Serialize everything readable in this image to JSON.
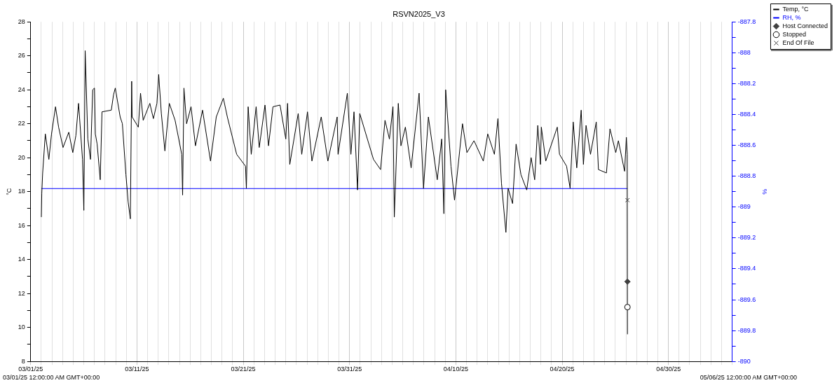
{
  "chart_data": {
    "type": "line",
    "title": "RSVN2025_V3",
    "ylabel": "°C",
    "y2label": "%",
    "xlim": [
      "2025-03-01",
      "2025-05-06"
    ],
    "xticks": [
      {
        "value": "2025-03-01",
        "label": "03/01/25"
      },
      {
        "value": "2025-03-02",
        "label": null
      },
      {
        "value": "2025-03-03",
        "label": null
      },
      {
        "value": "2025-03-04",
        "label": null
      },
      {
        "value": "2025-03-05",
        "label": null
      },
      {
        "value": "2025-03-06",
        "label": null
      },
      {
        "value": "2025-03-07",
        "label": null
      },
      {
        "value": "2025-03-08",
        "label": null
      },
      {
        "value": "2025-03-09",
        "label": null
      },
      {
        "value": "2025-03-10",
        "label": null
      },
      {
        "value": "2025-03-11",
        "label": "03/11/25"
      },
      {
        "value": "2025-03-12",
        "label": null
      },
      {
        "value": "2025-03-13",
        "label": null
      },
      {
        "value": "2025-03-14",
        "label": null
      },
      {
        "value": "2025-03-15",
        "label": null
      },
      {
        "value": "2025-03-16",
        "label": null
      },
      {
        "value": "2025-03-17",
        "label": null
      },
      {
        "value": "2025-03-18",
        "label": null
      },
      {
        "value": "2025-03-19",
        "label": null
      },
      {
        "value": "2025-03-20",
        "label": null
      },
      {
        "value": "2025-03-21",
        "label": "03/21/25"
      },
      {
        "value": "2025-03-22",
        "label": null
      },
      {
        "value": "2025-03-23",
        "label": null
      },
      {
        "value": "2025-03-24",
        "label": null
      },
      {
        "value": "2025-03-25",
        "label": null
      },
      {
        "value": "2025-03-26",
        "label": null
      },
      {
        "value": "2025-03-27",
        "label": null
      },
      {
        "value": "2025-03-28",
        "label": null
      },
      {
        "value": "2025-03-29",
        "label": null
      },
      {
        "value": "2025-03-30",
        "label": null
      },
      {
        "value": "2025-03-31",
        "label": "03/31/25"
      },
      {
        "value": "2025-04-01",
        "label": null
      },
      {
        "value": "2025-04-02",
        "label": null
      },
      {
        "value": "2025-04-03",
        "label": null
      },
      {
        "value": "2025-04-04",
        "label": null
      },
      {
        "value": "2025-04-05",
        "label": null
      },
      {
        "value": "2025-04-06",
        "label": null
      },
      {
        "value": "2025-04-07",
        "label": null
      },
      {
        "value": "2025-04-08",
        "label": null
      },
      {
        "value": "2025-04-09",
        "label": null
      },
      {
        "value": "2025-04-10",
        "label": "04/10/25"
      },
      {
        "value": "2025-04-11",
        "label": null
      },
      {
        "value": "2025-04-12",
        "label": null
      },
      {
        "value": "2025-04-13",
        "label": null
      },
      {
        "value": "2025-04-14",
        "label": null
      },
      {
        "value": "2025-04-15",
        "label": null
      },
      {
        "value": "2025-04-16",
        "label": null
      },
      {
        "value": "2025-04-17",
        "label": null
      },
      {
        "value": "2025-04-18",
        "label": null
      },
      {
        "value": "2025-04-19",
        "label": null
      },
      {
        "value": "2025-04-20",
        "label": "04/20/25"
      },
      {
        "value": "2025-04-21",
        "label": null
      },
      {
        "value": "2025-04-22",
        "label": null
      },
      {
        "value": "2025-04-23",
        "label": null
      },
      {
        "value": "2025-04-24",
        "label": null
      },
      {
        "value": "2025-04-25",
        "label": null
      },
      {
        "value": "2025-04-26",
        "label": null
      },
      {
        "value": "2025-04-27",
        "label": null
      },
      {
        "value": "2025-04-28",
        "label": null
      },
      {
        "value": "2025-04-29",
        "label": null
      },
      {
        "value": "2025-04-30",
        "label": "04/30/25"
      },
      {
        "value": "2025-05-01",
        "label": null
      },
      {
        "value": "2025-05-02",
        "label": null
      },
      {
        "value": "2025-05-03",
        "label": null
      },
      {
        "value": "2025-05-04",
        "label": null
      },
      {
        "value": "2025-05-05",
        "label": null
      },
      {
        "value": "2025-05-06",
        "label": null
      }
    ],
    "ylim": [
      8,
      28
    ],
    "yticks": [
      8,
      {
        "value": 9,
        "label": null
      },
      10,
      {
        "value": 11,
        "label": null
      },
      12,
      {
        "value": 13,
        "label": null
      },
      14,
      {
        "value": 15,
        "label": null
      },
      16,
      {
        "value": 17,
        "label": null
      },
      18,
      {
        "value": 19,
        "label": null
      },
      20,
      {
        "value": 21,
        "label": null
      },
      22,
      {
        "value": 23,
        "label": null
      },
      24,
      {
        "value": 25,
        "label": null
      },
      26,
      {
        "value": 27,
        "label": null
      },
      28
    ],
    "y2lim": [
      -890,
      -887.8
    ],
    "y2ticks": [
      -890,
      {
        "value": -889.9,
        "label": null
      },
      -889.8,
      {
        "value": -889.7,
        "label": null
      },
      -889.6,
      {
        "value": -889.5,
        "label": null
      },
      -889.4,
      {
        "value": -889.3,
        "label": null
      },
      -889.2,
      {
        "value": -889.1,
        "label": null
      },
      -889,
      {
        "value": -888.9,
        "label": null
      },
      -888.8,
      {
        "value": -888.7,
        "label": null
      },
      -888.6,
      {
        "value": -888.5,
        "label": null
      },
      -888.4,
      {
        "value": -888.3,
        "label": null
      },
      -888.2,
      {
        "value": -888.1,
        "label": null
      },
      -888,
      {
        "value": -887.9,
        "label": null
      },
      -887.8
    ],
    "grid": "x",
    "legend": "right",
    "line_style": "solid",
    "series": [
      {
        "name": "Temp, °C",
        "color": "#000000",
        "marker": "none",
        "x": [
          "2025-03-02T00:00",
          "2025-03-02T01:00",
          "2025-03-02T03:00",
          "2025-03-02T09:00",
          "2025-03-02T17:00",
          "2025-03-02T23:00",
          "2025-03-03T08:00",
          "2025-03-03T15:00",
          "2025-03-04T01:00",
          "2025-03-04T14:00",
          "2025-03-04T23:00",
          "2025-03-05T06:00",
          "2025-03-05T12:00",
          "2025-03-05T21:00",
          "2025-03-06T00:00",
          "2025-03-06T03:00",
          "2025-03-06T09:00",
          "2025-03-06T15:00",
          "2025-03-06T20:00",
          "2025-03-07T00:00",
          "2025-03-07T02:00",
          "2025-03-07T06:00",
          "2025-03-07T13:00",
          "2025-03-07T17:00",
          "2025-03-08T14:00",
          "2025-03-08T19:00",
          "2025-03-08T23:00",
          "2025-03-09T10:00",
          "2025-03-09T15:00",
          "2025-03-09T23:00",
          "2025-03-10T04:00",
          "2025-03-10T09:00",
          "2025-03-10T12:00",
          "2025-03-10T13:00",
          "2025-03-11T03:00",
          "2025-03-11T08:00",
          "2025-03-11T14:00",
          "2025-03-12T05:00",
          "2025-03-12T13:00",
          "2025-03-12T21:00",
          "2025-03-13T01:00",
          "2025-03-13T07:00",
          "2025-03-13T15:00",
          "2025-03-14T01:00",
          "2025-03-14T14:00",
          "2025-03-15T05:00",
          "2025-03-15T07:00",
          "2025-03-15T10:00",
          "2025-03-15T16:00",
          "2025-03-16T02:00",
          "2025-03-16T12:00",
          "2025-03-17T04:00",
          "2025-03-17T22:00",
          "2025-03-18T11:00",
          "2025-03-19T03:00",
          "2025-03-19T12:00",
          "2025-03-20T09:00",
          "2025-03-21T05:00",
          "2025-03-21T07:00",
          "2025-03-21T11:00",
          "2025-03-21T18:00",
          "2025-03-22T05:00",
          "2025-03-22T12:00",
          "2025-03-23T01:00",
          "2025-03-23T09:00",
          "2025-03-23T19:00",
          "2025-03-24T11:00",
          "2025-03-25T00:00",
          "2025-03-25T04:00",
          "2025-03-25T09:00",
          "2025-03-26T04:00",
          "2025-03-26T12:00",
          "2025-03-27T01:00",
          "2025-03-27T11:00",
          "2025-03-28T08:00",
          "2025-03-28T23:00",
          "2025-03-29T20:00",
          "2025-03-29T22:00",
          "2025-03-30T19:00",
          "2025-03-31T03:00",
          "2025-03-31T10:00",
          "2025-03-31T18:00",
          "2025-03-31T23:00",
          "2025-04-02T06:00",
          "2025-04-02T22:00",
          "2025-04-03T08:00",
          "2025-04-03T18:00",
          "2025-04-04T02:00",
          "2025-04-04T05:00",
          "2025-04-04T14:00",
          "2025-04-04T20:00",
          "2025-04-05T06:00",
          "2025-04-05T19:00",
          "2025-04-06T13:00",
          "2025-04-06T23:00",
          "2025-04-07T10:00",
          "2025-04-08T06:00",
          "2025-04-08T16:00",
          "2025-04-08T21:00",
          "2025-04-09T01:00",
          "2025-04-09T13:00",
          "2025-04-09T21:00",
          "2025-04-10T15:00",
          "2025-04-11T01:00",
          "2025-04-11T17:00",
          "2025-04-12T14:00",
          "2025-04-13T00:00",
          "2025-04-13T15:00",
          "2025-04-13T23:00",
          "2025-04-14T07:00",
          "2025-04-14T17:00",
          "2025-04-14T22:00",
          "2025-04-15T08:00",
          "2025-04-15T16:00",
          "2025-04-16T03:00",
          "2025-04-16T16:00",
          "2025-04-17T02:00",
          "2025-04-17T10:00",
          "2025-04-17T17:00",
          "2025-04-17T23:00",
          "2025-04-18T01:00",
          "2025-04-18T11:00",
          "2025-04-19T13:00",
          "2025-04-19T18:00",
          "2025-04-20T10:00",
          "2025-04-20T18:00",
          "2025-04-21T01:00",
          "2025-04-21T09:00",
          "2025-04-21T19:00",
          "2025-04-22T00:00",
          "2025-04-22T06:00",
          "2025-04-22T16:00",
          "2025-04-23T05:00",
          "2025-04-23T10:00",
          "2025-04-24T04:00",
          "2025-04-24T12:00",
          "2025-04-25T01:00",
          "2025-04-25T07:00",
          "2025-04-25T21:00",
          "2025-04-26T01:00",
          "2025-04-26T03:00",
          "2025-04-26T03:30"
        ],
        "values": [
          16.5,
          17.9,
          19.1,
          21.4,
          19.9,
          21.4,
          23.0,
          21.8,
          20.6,
          21.5,
          20.3,
          21.3,
          23.2,
          19.9,
          16.9,
          26.3,
          21.1,
          19.9,
          24.0,
          24.1,
          21.4,
          20.8,
          18.7,
          22.7,
          22.8,
          23.7,
          24.1,
          22.4,
          22.0,
          19.0,
          17.4,
          16.4,
          24.5,
          22.4,
          21.8,
          23.8,
          22.2,
          23.2,
          22.3,
          23.2,
          24.9,
          22.6,
          20.4,
          23.2,
          22.2,
          20.2,
          17.8,
          24.1,
          22.0,
          23.0,
          20.7,
          22.8,
          19.8,
          22.4,
          23.5,
          22.4,
          20.2,
          19.5,
          18.2,
          23.0,
          20.2,
          23.0,
          20.6,
          23.1,
          20.7,
          23.0,
          23.1,
          21.1,
          23.2,
          19.6,
          22.6,
          20.2,
          22.7,
          19.8,
          22.4,
          19.8,
          22.4,
          20.2,
          23.8,
          20.2,
          22.7,
          18.1,
          22.6,
          19.9,
          19.3,
          22.2,
          21.1,
          23.0,
          16.5,
          23.2,
          20.7,
          21.8,
          19.4,
          23.8,
          18.2,
          22.4,
          18.7,
          21.1,
          16.7,
          24.0,
          19.5,
          17.5,
          22.0,
          20.3,
          21.0,
          19.8,
          21.4,
          20.2,
          22.3,
          18.5,
          15.6,
          18.2,
          17.3,
          20.8,
          19.0,
          18.1,
          20.0,
          18.7,
          21.9,
          19.6,
          21.8,
          19.8,
          21.8,
          20.2,
          19.5,
          18.2,
          22.1,
          19.4,
          22.8,
          19.6,
          21.9,
          20.2,
          22.1,
          19.3,
          19.1,
          21.7,
          20.3,
          21.0,
          19.2,
          21.2,
          20.2,
          9.6
        ]
      },
      {
        "name": "RH, %",
        "axis": "y2",
        "color": "#0000ff",
        "marker": "none",
        "x": [
          "2025-03-02T00:00",
          "2025-04-26T03:30"
        ],
        "values": [
          -888.88,
          -888.88
        ]
      },
      {
        "name": "Host Connected",
        "type": "scatter",
        "color": "#404040",
        "marker": "diamond",
        "x": [
          "2025-04-26T03:30"
        ],
        "values": [
          12.7
        ]
      },
      {
        "name": "Stopped",
        "type": "scatter",
        "color": "#000000",
        "marker": "circle",
        "x": [
          "2025-04-26T03:30"
        ],
        "values": [
          11.2
        ]
      },
      {
        "name": "End Of File",
        "type": "scatter",
        "color": "#404040",
        "marker": "cross",
        "x": [
          "2025-04-26T03:30"
        ],
        "values": [
          17.5
        ]
      }
    ],
    "annotations": [
      "03/01/25 12:00:00 AM GMT+00:00",
      "05/06/25 12:00:00 AM GMT+00:00"
    ]
  }
}
